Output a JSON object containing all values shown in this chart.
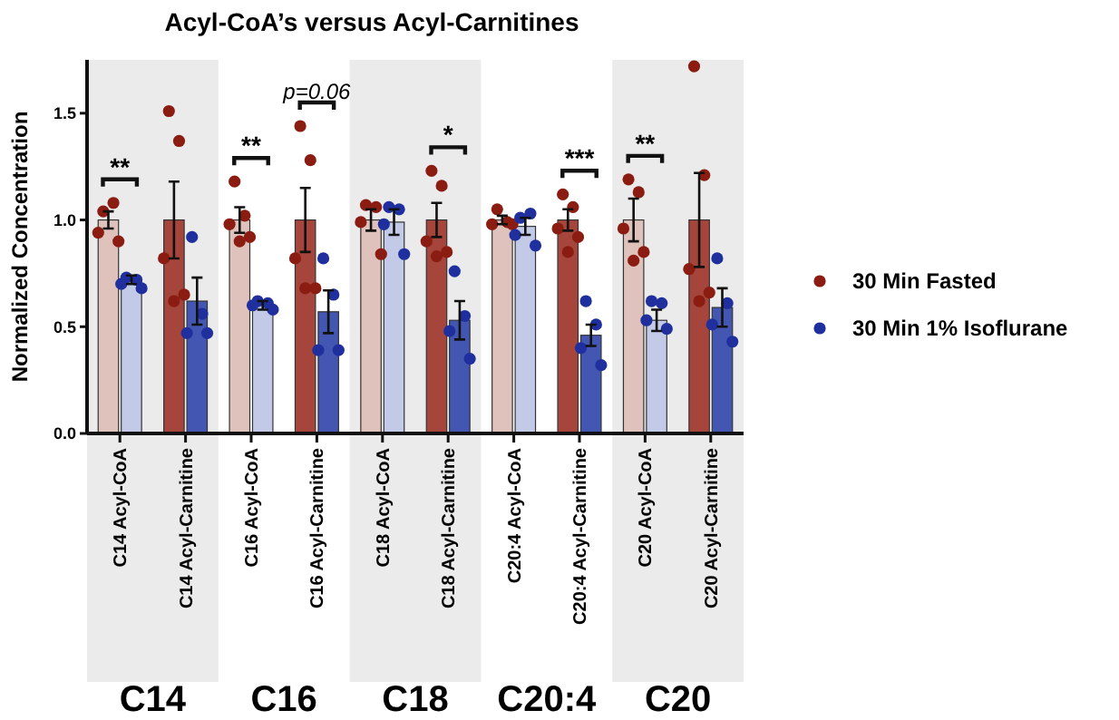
{
  "chart_data": {
    "type": "bar",
    "title": "Acyl-CoA’s versus Acyl-Carnitines",
    "ylabel": "Normalized Concentration",
    "categories": [
      "C14 Acyl-CoA",
      "C14 Acyl-Carnitine",
      "C16 Acyl-CoA",
      "C16 Acyl-Carnitine",
      "C18 Acyl-CoA",
      "C18 Acyl-Carnitine",
      "C20:4 Acyl-CoA",
      "C20:4 Acyl-Carnitine",
      "C20 Acyl-CoA",
      "C20 Acyl-Carnitine"
    ],
    "ylim": [
      0,
      1.75
    ],
    "yticks": [
      {
        "value": 0,
        "label": "0.0"
      },
      {
        "value": 0.5,
        "label": "0.5"
      },
      {
        "value": 1,
        "label": "1.0"
      },
      {
        "value": 1.5,
        "label": "1.5"
      }
    ],
    "grid": false,
    "legend": "right",
    "marker": "circle",
    "series": [
      {
        "colors": [
          "#dfc2bc",
          "#a5453b",
          "#dfc2bc",
          "#a5453b",
          "#dfc2bc",
          "#a5453b",
          "#dfc2bc",
          "#a5453b",
          "#dfc2bc",
          "#a5453b"
        ],
        "values": [
          1,
          1,
          1,
          1,
          1,
          1,
          1,
          1,
          1,
          1
        ],
        "errors": [
          0.04,
          0.18,
          0.06,
          0.15,
          0.05,
          0.08,
          0.02,
          0.05,
          0.1,
          0.22
        ]
      },
      {
        "colors": [
          "#c3cae8",
          "#4356b1",
          "#c3cae8",
          "#4356b1",
          "#c3cae8",
          "#4356b1",
          "#c3cae8",
          "#4356b1",
          "#c3cae8",
          "#4356b1"
        ],
        "values": [
          0.72,
          0.62,
          0.6,
          0.57,
          0.99,
          0.53,
          0.97,
          0.46,
          0.53,
          0.59
        ],
        "errors": [
          0.02,
          0.11,
          0.02,
          0.1,
          0.06,
          0.09,
          0.04,
          0.05,
          0.05,
          0.09
        ]
      },
      {
        "type": "scatter",
        "name": "30 Min Fasted",
        "color": "#8b1c12",
        "x": [
          "C14 Acyl-CoA",
          "C14 Acyl-CoA",
          "C14 Acyl-CoA",
          "C14 Acyl-CoA",
          "C14 Acyl-Carnitine",
          "C14 Acyl-Carnitine",
          "C14 Acyl-Carnitine",
          "C14 Acyl-Carnitine",
          "C14 Acyl-Carnitine",
          "C16 Acyl-CoA",
          "C16 Acyl-CoA",
          "C16 Acyl-CoA",
          "C16 Acyl-CoA",
          "C16 Acyl-CoA",
          "C16 Acyl-Carnitine",
          "C16 Acyl-Carnitine",
          "C16 Acyl-Carnitine",
          "C16 Acyl-Carnitine",
          "C16 Acyl-Carnitine",
          "C18 Acyl-CoA",
          "C18 Acyl-CoA",
          "C18 Acyl-CoA",
          "C18 Acyl-CoA",
          "C18 Acyl-Carnitine",
          "C18 Acyl-Carnitine",
          "C18 Acyl-Carnitine",
          "C18 Acyl-Carnitine",
          "C18 Acyl-Carnitine",
          "C20:4 Acyl-CoA",
          "C20:4 Acyl-CoA",
          "C20:4 Acyl-CoA",
          "C20:4 Acyl-CoA",
          "C20:4 Acyl-Carnitine",
          "C20:4 Acyl-Carnitine",
          "C20:4 Acyl-Carnitine",
          "C20:4 Acyl-Carnitine",
          "C20:4 Acyl-Carnitine",
          "C20 Acyl-CoA",
          "C20 Acyl-CoA",
          "C20 Acyl-CoA",
          "C20 Acyl-CoA",
          "C20 Acyl-CoA",
          "C20 Acyl-Carnitine",
          "C20 Acyl-Carnitine",
          "C20 Acyl-Carnitine",
          "C20 Acyl-Carnitine",
          "C20 Acyl-Carnitine"
        ],
        "values": [
          1.04,
          1.08,
          0.94,
          0.9,
          1.51,
          1.37,
          0.82,
          0.65,
          0.62,
          1.18,
          1.02,
          0.98,
          0.92,
          0.9,
          1.44,
          1.28,
          0.82,
          0.68,
          0.68,
          1.07,
          1.06,
          0.99,
          0.84,
          1.23,
          1.16,
          0.9,
          0.85,
          0.83,
          1.05,
          0.99,
          0.98,
          0.98,
          1.12,
          1.06,
          0.96,
          0.92,
          0.85,
          1.19,
          1.13,
          0.96,
          0.85,
          0.81,
          1.72,
          1.21,
          0.77,
          0.66,
          0.62
        ]
      },
      {
        "type": "scatter",
        "name": "30 Min 1% Isoflurane",
        "color": "#1f309e",
        "x": [
          "C14 Acyl-CoA",
          "C14 Acyl-CoA",
          "C14 Acyl-CoA",
          "C14 Acyl-CoA",
          "C14 Acyl-Carnitine",
          "C14 Acyl-Carnitine",
          "C14 Acyl-Carnitine",
          "C14 Acyl-Carnitine",
          "C16 Acyl-CoA",
          "C16 Acyl-CoA",
          "C16 Acyl-CoA",
          "C16 Acyl-CoA",
          "C16 Acyl-Carnitine",
          "C16 Acyl-Carnitine",
          "C16 Acyl-Carnitine",
          "C16 Acyl-Carnitine",
          "C18 Acyl-CoA",
          "C18 Acyl-CoA",
          "C18 Acyl-CoA",
          "C18 Acyl-CoA",
          "C18 Acyl-Carnitine",
          "C18 Acyl-Carnitine",
          "C18 Acyl-Carnitine",
          "C18 Acyl-Carnitine",
          "C20:4 Acyl-CoA",
          "C20:4 Acyl-CoA",
          "C20:4 Acyl-CoA",
          "C20:4 Acyl-CoA",
          "C20:4 Acyl-Carnitine",
          "C20:4 Acyl-Carnitine",
          "C20:4 Acyl-Carnitine",
          "C20:4 Acyl-Carnitine",
          "C20 Acyl-CoA",
          "C20 Acyl-CoA",
          "C20 Acyl-CoA",
          "C20 Acyl-CoA",
          "C20 Acyl-Carnitine",
          "C20 Acyl-Carnitine",
          "C20 Acyl-Carnitine",
          "C20 Acyl-Carnitine"
        ],
        "values": [
          0.73,
          0.72,
          0.7,
          0.68,
          0.92,
          0.56,
          0.47,
          0.47,
          0.62,
          0.61,
          0.6,
          0.58,
          0.82,
          0.65,
          0.39,
          0.39,
          1.06,
          1.05,
          0.98,
          0.84,
          0.76,
          0.55,
          0.48,
          0.35,
          1.01,
          1.03,
          0.93,
          0.88,
          0.62,
          0.51,
          0.4,
          0.32,
          0.62,
          0.61,
          0.53,
          0.49,
          0.82,
          0.61,
          0.51,
          0.43
        ]
      }
    ],
    "bands": [
      {
        "axis": "x",
        "from": "C14 Acyl-CoA",
        "to": "C14 Acyl-Carnitine",
        "color": "#ebebeb"
      },
      {
        "axis": "x",
        "from": "C18 Acyl-CoA",
        "to": "C18 Acyl-Carnitine",
        "color": "#ebebeb"
      },
      {
        "axis": "x",
        "from": "C20 Acyl-CoA",
        "to": "C20 Acyl-Carnitine",
        "color": "#ebebeb"
      }
    ],
    "annotations": [
      "**",
      "**",
      "p=0.06",
      "*",
      "***",
      "**",
      "C14",
      "C16",
      "C18",
      "C20:4",
      "C20"
    ]
  }
}
